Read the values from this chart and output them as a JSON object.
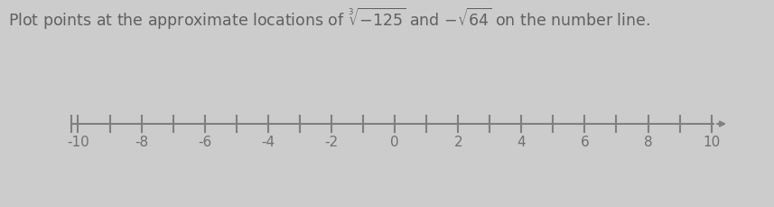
{
  "title": "Plot points at the approximate locations of $\\sqrt[3]{-125}$ and $-\\sqrt{64}$ on the number line.",
  "title_fontsize": 12.5,
  "title_color": "#606060",
  "xmin": -10,
  "xmax": 10,
  "tick_labels": [
    -10,
    -8,
    -6,
    -4,
    -2,
    0,
    2,
    4,
    6,
    8,
    10
  ],
  "line_color": "#808080",
  "background_color": "#cccccc",
  "fig_width": 8.57,
  "fig_height": 2.29,
  "label_fontsize": 11,
  "label_color": "#707070"
}
